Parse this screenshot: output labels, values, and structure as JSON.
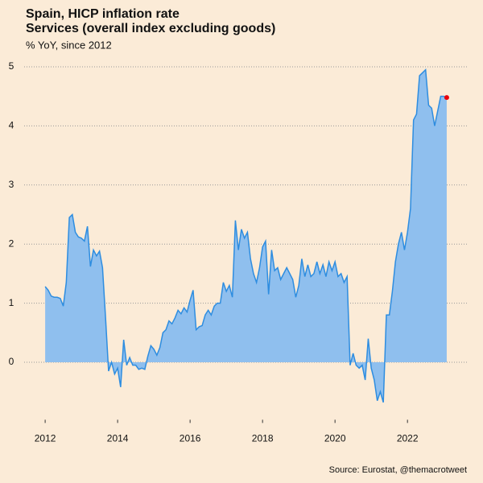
{
  "chart_data": {
    "type": "area",
    "title": [
      "Spain, HICP inflation rate",
      "Services (overall index excluding goods)"
    ],
    "subtitle": "% YoY, since 2012",
    "source": "Source: Eurostat, @themacrotweet",
    "x": [
      2012,
      2012.083,
      2012.167,
      2012.25,
      2012.333,
      2012.417,
      2012.5,
      2012.583,
      2012.667,
      2012.75,
      2012.833,
      2012.917,
      2013,
      2013.083,
      2013.167,
      2013.25,
      2013.333,
      2013.417,
      2013.5,
      2013.583,
      2013.667,
      2013.75,
      2013.833,
      2013.917,
      2014,
      2014.083,
      2014.167,
      2014.25,
      2014.333,
      2014.417,
      2014.5,
      2014.583,
      2014.667,
      2014.75,
      2014.833,
      2014.917,
      2015,
      2015.083,
      2015.167,
      2015.25,
      2015.333,
      2015.417,
      2015.5,
      2015.583,
      2015.667,
      2015.75,
      2015.833,
      2015.917,
      2016,
      2016.083,
      2016.167,
      2016.25,
      2016.333,
      2016.417,
      2016.5,
      2016.583,
      2016.667,
      2016.75,
      2016.833,
      2016.917,
      2017,
      2017.083,
      2017.167,
      2017.25,
      2017.333,
      2017.417,
      2017.5,
      2017.583,
      2017.667,
      2017.75,
      2017.833,
      2017.917,
      2018,
      2018.083,
      2018.167,
      2018.25,
      2018.333,
      2018.417,
      2018.5,
      2018.583,
      2018.667,
      2018.75,
      2018.833,
      2018.917,
      2019,
      2019.083,
      2019.167,
      2019.25,
      2019.333,
      2019.417,
      2019.5,
      2019.583,
      2019.667,
      2019.75,
      2019.833,
      2019.917,
      2020,
      2020.083,
      2020.167,
      2020.25,
      2020.333,
      2020.417,
      2020.5,
      2020.583,
      2020.667,
      2020.75,
      2020.833,
      2020.917,
      2021,
      2021.083,
      2021.167,
      2021.25,
      2021.333,
      2021.417,
      2021.5,
      2021.583,
      2021.667,
      2021.75,
      2021.833,
      2021.917,
      2022,
      2022.083,
      2022.167,
      2022.25,
      2022.333,
      2022.417,
      2022.5,
      2022.583,
      2022.667,
      2022.75,
      2022.833,
      2022.917,
      2023,
      2023.083
    ],
    "series": [
      {
        "color": "#2e8de0",
        "fill": "#8fbfee",
        "values": [
          1.28,
          1.22,
          1.12,
          1.1,
          1.1,
          1.08,
          0.95,
          1.35,
          2.45,
          2.5,
          2.2,
          2.12,
          2.1,
          2.05,
          2.3,
          1.62,
          1.9,
          1.8,
          1.88,
          1.6,
          0.75,
          -0.15,
          0,
          -0.2,
          -0.1,
          -0.42,
          0.38,
          -0.05,
          0.08,
          -0.05,
          -0.05,
          -0.12,
          -0.1,
          -0.12,
          0.1,
          0.28,
          0.22,
          0.12,
          0.25,
          0.5,
          0.55,
          0.7,
          0.65,
          0.75,
          0.88,
          0.82,
          0.92,
          0.85,
          1.05,
          1.22,
          0.55,
          0.6,
          0.62,
          0.8,
          0.88,
          0.8,
          0.95,
          1.0,
          1.0,
          1.35,
          1.2,
          1.3,
          1.1,
          2.4,
          1.9,
          2.25,
          2.1,
          2.2,
          1.75,
          1.5,
          1.35,
          1.6,
          1.95,
          2.05,
          1.15,
          1.9,
          1.55,
          1.6,
          1.4,
          1.5,
          1.6,
          1.5,
          1.4,
          1.1,
          1.3,
          1.75,
          1.45,
          1.65,
          1.45,
          1.5,
          1.7,
          1.5,
          1.65,
          1.45,
          1.7,
          1.55,
          1.7,
          1.45,
          1.5,
          1.35,
          1.45,
          -0.05,
          0.15,
          -0.05,
          -0.1,
          -0.05,
          -0.3,
          0.4,
          -0.1,
          -0.3,
          -0.65,
          -0.5,
          -0.68,
          0.8,
          0.8,
          1.2,
          1.7,
          2.0,
          2.2,
          1.9,
          2.2,
          2.6,
          4.1,
          4.2,
          4.85,
          4.9,
          4.95,
          4.35,
          4.3,
          4.0,
          4.25,
          4.5,
          4.5,
          4.48
        ]
      }
    ],
    "last_point_color": "#e8000b",
    "xlim": [
      2011.42,
      2023.64
    ],
    "xticks": [
      2012,
      2014,
      2016,
      2018,
      2020,
      2022
    ],
    "ylim": [
      -1,
      5.2
    ],
    "yticks": [
      0,
      1,
      2,
      3,
      4,
      5
    ],
    "grid": true
  }
}
